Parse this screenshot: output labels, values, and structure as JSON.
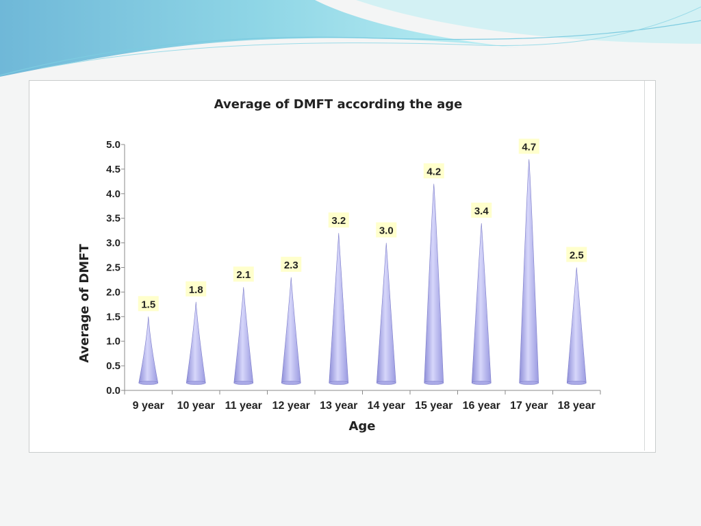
{
  "chart_data": {
    "type": "bar",
    "title": "Average  of  DMFT  according  the  age",
    "xlabel": "Age",
    "ylabel": "Average  of  DMFT",
    "categories": [
      "9 year",
      "10 year",
      "11 year",
      "12 year",
      "13 year",
      "14 year",
      "15 year",
      "16 year",
      "17 year",
      "18 year"
    ],
    "values": [
      1.5,
      1.8,
      2.1,
      2.3,
      3.2,
      3.0,
      4.2,
      3.4,
      4.7,
      2.5
    ],
    "value_labels": [
      "1.5",
      "1.8",
      "2.1",
      "2.3",
      "3.2",
      "3.0",
      "4.2",
      "3.4",
      "4.7",
      "2.5"
    ],
    "ylim": [
      0,
      5
    ],
    "yticks": [
      "0.0",
      "0.5",
      "1.0",
      "1.5",
      "2.0",
      "2.5",
      "3.0",
      "3.5",
      "4.0",
      "4.5",
      "5.0"
    ],
    "grid": false,
    "legend": "none",
    "bar_color": "#b8b8ee",
    "label_bg": "#ffffcc"
  }
}
